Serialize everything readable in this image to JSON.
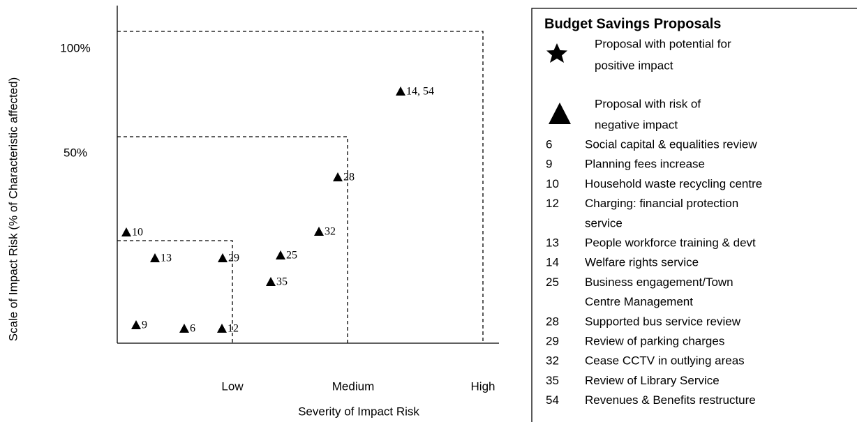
{
  "axes": {
    "y_label": "Scale of Impact Risk (% of Characteristic affected)",
    "y_ticks": [
      "100%",
      "50%"
    ],
    "x_label": "Severity of Impact Risk",
    "x_ticks": [
      "Low",
      "Medium",
      "High"
    ]
  },
  "points": [
    "10",
    "13",
    "29",
    "25",
    "32",
    "28",
    "14, 54",
    "35",
    "9",
    "6",
    "12"
  ],
  "legend": {
    "title": "Budget Savings Proposals",
    "symbols": [
      {
        "lines": [
          "Proposal with potential for",
          "positive impact"
        ]
      },
      {
        "lines": [
          "Proposal with risk of",
          "negative impact"
        ]
      }
    ],
    "items": [
      {
        "number": "6",
        "lines": [
          "Social capital & equalities review"
        ]
      },
      {
        "number": "9",
        "lines": [
          "Planning fees increase"
        ]
      },
      {
        "number": "10",
        "lines": [
          "Household waste recycling centre"
        ]
      },
      {
        "number": "12",
        "lines": [
          "Charging: financial protection",
          "service"
        ]
      },
      {
        "number": "13",
        "lines": [
          "People workforce training & devt"
        ]
      },
      {
        "number": "14",
        "lines": [
          "Welfare rights service"
        ]
      },
      {
        "number": "25",
        "lines": [
          "Business engagement/Town",
          "Centre Management"
        ]
      },
      {
        "number": "28",
        "lines": [
          "Supported bus service review"
        ]
      },
      {
        "number": "29",
        "lines": [
          "Review of parking charges"
        ]
      },
      {
        "number": "32",
        "lines": [
          "Cease CCTV in outlying areas"
        ]
      },
      {
        "number": "35",
        "lines": [
          "Review of Library Service"
        ]
      },
      {
        "number": "54",
        "lines": [
          "Revenues & Benefits restructure"
        ]
      }
    ]
  }
}
